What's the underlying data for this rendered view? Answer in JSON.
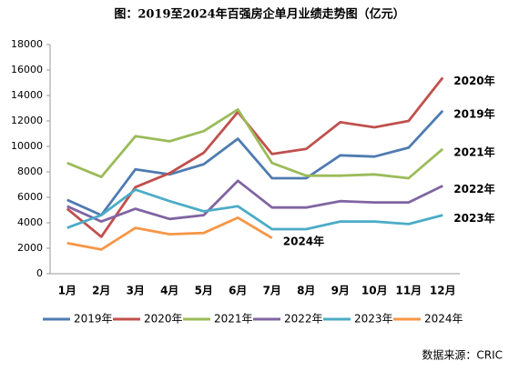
{
  "chart_data": {
    "type": "line",
    "title": "图：2019至2024年百强房企单月业绩走势图（亿元）",
    "categories": [
      "1月",
      "2月",
      "3月",
      "4月",
      "5月",
      "6月",
      "7月",
      "8月",
      "9月",
      "10月",
      "11月",
      "12月"
    ],
    "series": [
      {
        "name": "2019年",
        "color": "#4f7bb0",
        "values": [
          5800,
          4600,
          8200,
          7800,
          8600,
          10600,
          7500,
          7500,
          9300,
          9200,
          9900,
          12800
        ]
      },
      {
        "name": "2020年",
        "color": "#c0504d",
        "values": [
          5100,
          2900,
          6800,
          7900,
          9500,
          12700,
          9400,
          9800,
          11900,
          11500,
          12000,
          15400
        ]
      },
      {
        "name": "2021年",
        "color": "#9bbb59",
        "values": [
          8700,
          7600,
          10800,
          10400,
          11200,
          12900,
          8700,
          7700,
          7700,
          7800,
          7500,
          9800
        ]
      },
      {
        "name": "2022年",
        "color": "#8064a2",
        "values": [
          5300,
          4100,
          5100,
          4300,
          4600,
          7300,
          5200,
          5200,
          5700,
          5600,
          5600,
          6900
        ]
      },
      {
        "name": "2023年",
        "color": "#4bacc6",
        "values": [
          3600,
          4600,
          6600,
          5700,
          4900,
          5300,
          3500,
          3500,
          4100,
          4100,
          3900,
          4600
        ]
      },
      {
        "name": "2024年",
        "color": "#f79646",
        "values": [
          2400,
          1900,
          3600,
          3100,
          3200,
          4400,
          2800,
          null,
          null,
          null,
          null,
          null
        ]
      }
    ],
    "ylim": [
      0,
      18000
    ],
    "yticks": [
      0,
      2000,
      4000,
      6000,
      8000,
      10000,
      12000,
      14000,
      16000,
      18000
    ],
    "grid": false,
    "legend": "bottom",
    "source": "数据来源：CRIC"
  }
}
